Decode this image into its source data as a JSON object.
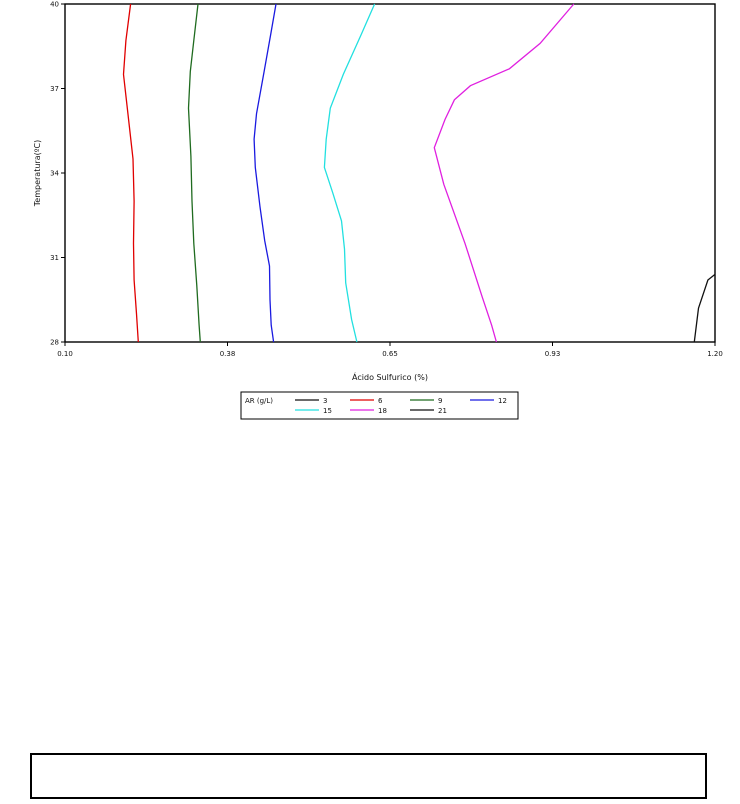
{
  "chart_data": {
    "type": "line",
    "title": "",
    "xlabel": "Ácido Sulfurico (%)",
    "ylabel": "Temperatura(ºC)",
    "xlim": [
      0.1,
      1.2
    ],
    "ylim": [
      28,
      40
    ],
    "x_ticks": [
      "0.10",
      "0.38",
      "0.65",
      "0.93",
      "1.20"
    ],
    "y_ticks": [
      "28",
      "31",
      "34",
      "37",
      "40"
    ],
    "x_tick_values": [
      0.1,
      0.375,
      0.65,
      0.925,
      1.2
    ],
    "y_tick_values": [
      28,
      31,
      34,
      37,
      40
    ],
    "legend": {
      "title": "AR (g/L)",
      "entries": [
        "3",
        "6",
        "9",
        "12",
        "15",
        "18",
        "21"
      ],
      "placement": "bottom"
    },
    "series": [
      {
        "name": "6",
        "color": "#e00000",
        "points": [
          [
            0.211,
            40
          ],
          [
            0.203,
            38.7
          ],
          [
            0.199,
            37.5
          ],
          [
            0.205,
            36.4
          ],
          [
            0.215,
            34.5
          ],
          [
            0.217,
            33
          ],
          [
            0.216,
            31.5
          ],
          [
            0.217,
            30.2
          ],
          [
            0.221,
            29
          ],
          [
            0.224,
            28
          ]
        ]
      },
      {
        "name": "9",
        "color": "#1f6b1f",
        "points": [
          [
            0.325,
            40
          ],
          [
            0.318,
            38.7
          ],
          [
            0.312,
            37.6
          ],
          [
            0.309,
            36.3
          ],
          [
            0.313,
            34.6
          ],
          [
            0.315,
            33
          ],
          [
            0.318,
            31.5
          ],
          [
            0.323,
            30
          ],
          [
            0.327,
            28.6
          ],
          [
            0.329,
            28
          ]
        ]
      },
      {
        "name": "12",
        "color": "#1a1ae0",
        "points": [
          [
            0.457,
            40
          ],
          [
            0.448,
            38.9
          ],
          [
            0.437,
            37.6
          ],
          [
            0.424,
            36.1
          ],
          [
            0.42,
            35.2
          ],
          [
            0.422,
            34.2
          ],
          [
            0.43,
            32.8
          ],
          [
            0.438,
            31.6
          ],
          [
            0.446,
            30.7
          ],
          [
            0.447,
            29.5
          ],
          [
            0.449,
            28.6
          ],
          [
            0.453,
            28
          ]
        ]
      },
      {
        "name": "15",
        "color": "#22e0e0",
        "points": [
          [
            0.624,
            40
          ],
          [
            0.601,
            38.9
          ],
          [
            0.571,
            37.5
          ],
          [
            0.549,
            36.3
          ],
          [
            0.542,
            35.2
          ],
          [
            0.539,
            34.2
          ],
          [
            0.553,
            33.3
          ],
          [
            0.568,
            32.3
          ],
          [
            0.573,
            31.3
          ],
          [
            0.575,
            30.1
          ],
          [
            0.585,
            28.8
          ],
          [
            0.594,
            28
          ]
        ]
      },
      {
        "name": "18",
        "color": "#e020e0",
        "points": [
          [
            0.961,
            40
          ],
          [
            0.904,
            38.6
          ],
          [
            0.852,
            37.7
          ],
          [
            0.786,
            37.1
          ],
          [
            0.759,
            36.6
          ],
          [
            0.743,
            35.9
          ],
          [
            0.725,
            34.9
          ],
          [
            0.741,
            33.6
          ],
          [
            0.777,
            31.5
          ],
          [
            0.806,
            29.6
          ],
          [
            0.822,
            28.6
          ],
          [
            0.83,
            28
          ]
        ]
      },
      {
        "name": "21",
        "color": "#111111",
        "points": [
          [
            1.165,
            28
          ],
          [
            1.172,
            29.2
          ],
          [
            1.188,
            30.2
          ],
          [
            1.2,
            30.4
          ]
        ]
      },
      {
        "name": "3",
        "color": "#111111",
        "points": []
      }
    ]
  },
  "footer_box_text": ""
}
